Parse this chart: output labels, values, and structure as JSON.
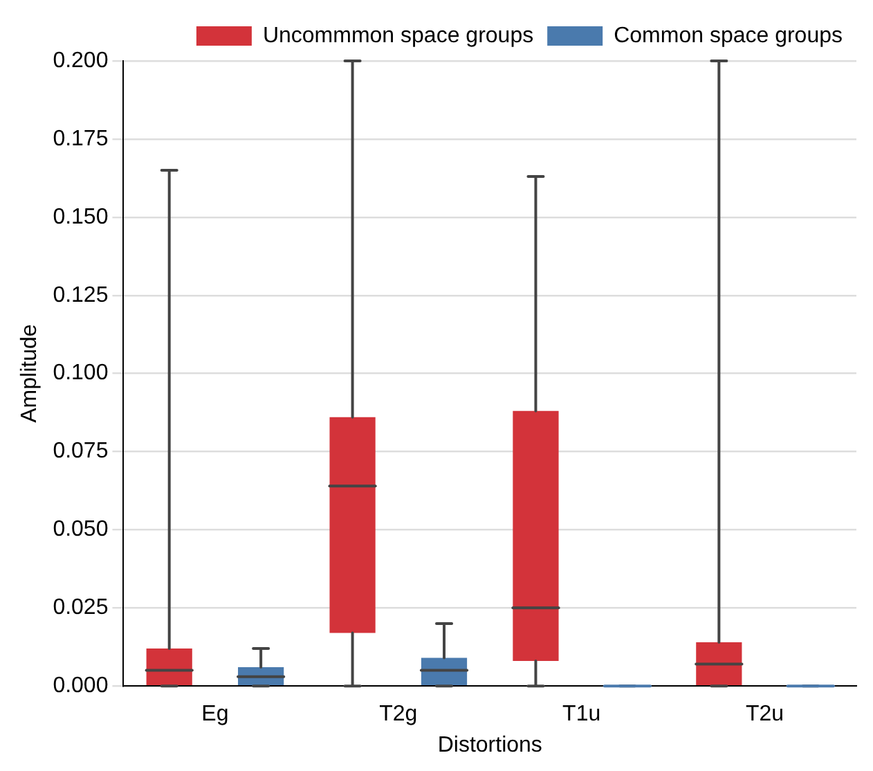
{
  "chart_data": {
    "type": "box",
    "xlabel": "Distortions",
    "ylabel": "Amplitude",
    "categories": [
      "Eg",
      "T2g",
      "T1u",
      "T2u"
    ],
    "series": [
      {
        "name": "Uncommmon space groups",
        "color": "#d3333a",
        "boxes": [
          {
            "low": 0,
            "q1": 0,
            "median": 0.005,
            "q3": 0.012,
            "high": 0.165
          },
          {
            "low": 0,
            "q1": 0.017,
            "median": 0.064,
            "q3": 0.086,
            "high": 0.2
          },
          {
            "low": 0,
            "q1": 0.008,
            "median": 0.025,
            "q3": 0.088,
            "high": 0.163
          },
          {
            "low": 0,
            "q1": 0,
            "median": 0.007,
            "q3": 0.014,
            "high": 0.2
          }
        ]
      },
      {
        "name": "Common space groups",
        "color": "#4a7aad",
        "boxes": [
          {
            "low": 0,
            "q1": 0,
            "median": 0.003,
            "q3": 0.006,
            "high": 0.012
          },
          {
            "low": 0,
            "q1": 0,
            "median": 0.005,
            "q3": 0.009,
            "high": 0.02
          },
          {
            "low": 0,
            "q1": 0,
            "median": 0,
            "q3": 0,
            "high": 0
          },
          {
            "low": 0,
            "q1": 0,
            "median": 0,
            "q3": 0,
            "high": 0
          }
        ]
      }
    ],
    "ylim": [
      0,
      0.2
    ],
    "yticks": [
      {
        "value": 0,
        "label": "0.000"
      },
      {
        "value": 0.025,
        "label": "0.025"
      },
      {
        "value": 0.05,
        "label": "0.050"
      },
      {
        "value": 0.075,
        "label": "0.075"
      },
      {
        "value": 0.1,
        "label": "0.100"
      },
      {
        "value": 0.125,
        "label": "0.125"
      },
      {
        "value": 0.15,
        "label": "0.150"
      },
      {
        "value": 0.175,
        "label": "0.175"
      },
      {
        "value": 0.2,
        "label": "0.200"
      }
    ],
    "grid": "y",
    "legend": "top right"
  }
}
